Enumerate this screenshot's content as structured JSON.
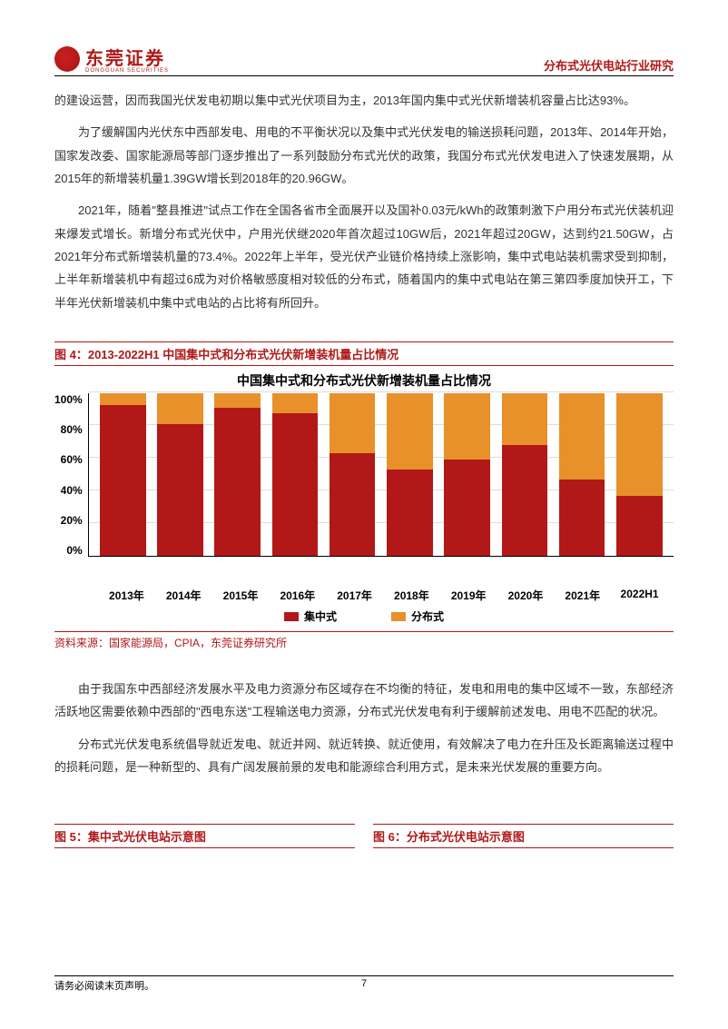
{
  "header": {
    "logo_name": "东莞证券",
    "logo_sub": "DONGGUAN SECURITIES",
    "right_title": "分布式光伏电站行业研究"
  },
  "paragraphs": {
    "p1": "的建设运营，因而我国光伏发电初期以集中式光伏项目为主，2013年国内集中式光伏新增装机容量占比达93%。",
    "p2": "为了缓解国内光伏东中西部发电、用电的不平衡状况以及集中式光伏发电的输送损耗问题，2013年、2014年开始，国家发改委、国家能源局等部门逐步推出了一系列鼓励分布式光伏的政策，我国分布式光伏发电进入了快速发展期，从2015年的新增装机量1.39GW增长到2018年的20.96GW。",
    "p3": "2021年，随着\"整县推进\"试点工作在全国各省市全面展开以及国补0.03元/kWh的政策刺激下户用分布式光伏装机迎来爆发式增长。新增分布式光伏中，户用光伏继2020年首次超过10GW后，2021年超过20GW，达到约21.50GW，占2021年分布式新增装机量的73.4%。2022年上半年，受光伏产业链价格持续上涨影响，集中式电站装机需求受到抑制，上半年新增装机中有超过6成为对价格敏感度相对较低的分布式，随着国内的集中式电站在第三第四季度加快开工，下半年光伏新增装机中集中式电站的占比将有所回升。",
    "p4": "由于我国东中西部经济发展水平及电力资源分布区域存在不均衡的特征，发电和用电的集中区域不一致，东部经济活跃地区需要依赖中西部的\"西电东送\"工程输送电力资源，分布式光伏发电有利于缓解前述发电、用电不匹配的状况。",
    "p5": "分布式光伏发电系统倡导就近发电、就近并网、就近转换、就近使用，有效解决了电力在升压及长距离输送过程中的损耗问题，是一种新型的、具有广阔发展前景的发电和能源综合利用方式，是未来光伏发展的重要方向。"
  },
  "figure4": {
    "label": "图 4：2013-2022H1 中国集中式和分布式光伏新增装机量占比情况",
    "chart": {
      "type": "stacked-bar",
      "title": "中国集中式和分布式光伏新增装机量占比情况",
      "categories": [
        "2013年",
        "2014年",
        "2015年",
        "2016年",
        "2017年",
        "2018年",
        "2019年",
        "2020年",
        "2021年",
        "2022H1"
      ],
      "series": {
        "centralized": {
          "label": "集中式",
          "color": "#b21818",
          "values": [
            93,
            81,
            91,
            88,
            63,
            53,
            59,
            68,
            47,
            37
          ]
        },
        "distributed": {
          "label": "分布式",
          "color": "#e8902a",
          "values": [
            7,
            19,
            9,
            12,
            37,
            47,
            41,
            32,
            53,
            63
          ]
        }
      },
      "y_ticks": [
        "100%",
        "80%",
        "60%",
        "40%",
        "20%",
        "0%"
      ],
      "ylim": [
        0,
        100
      ],
      "grid_color": "#dddddd",
      "axis_color": "#000000",
      "label_fontsize": 12,
      "title_fontsize": 14
    },
    "source": "资料来源：国家能源局，CPIA，东莞证券研究所"
  },
  "figure5_label": "图 5：集中式光伏电站示意图",
  "figure6_label": "图 6：分布式光伏电站示意图",
  "footer": {
    "left": "请务必阅读末页声明。",
    "page": "7"
  }
}
